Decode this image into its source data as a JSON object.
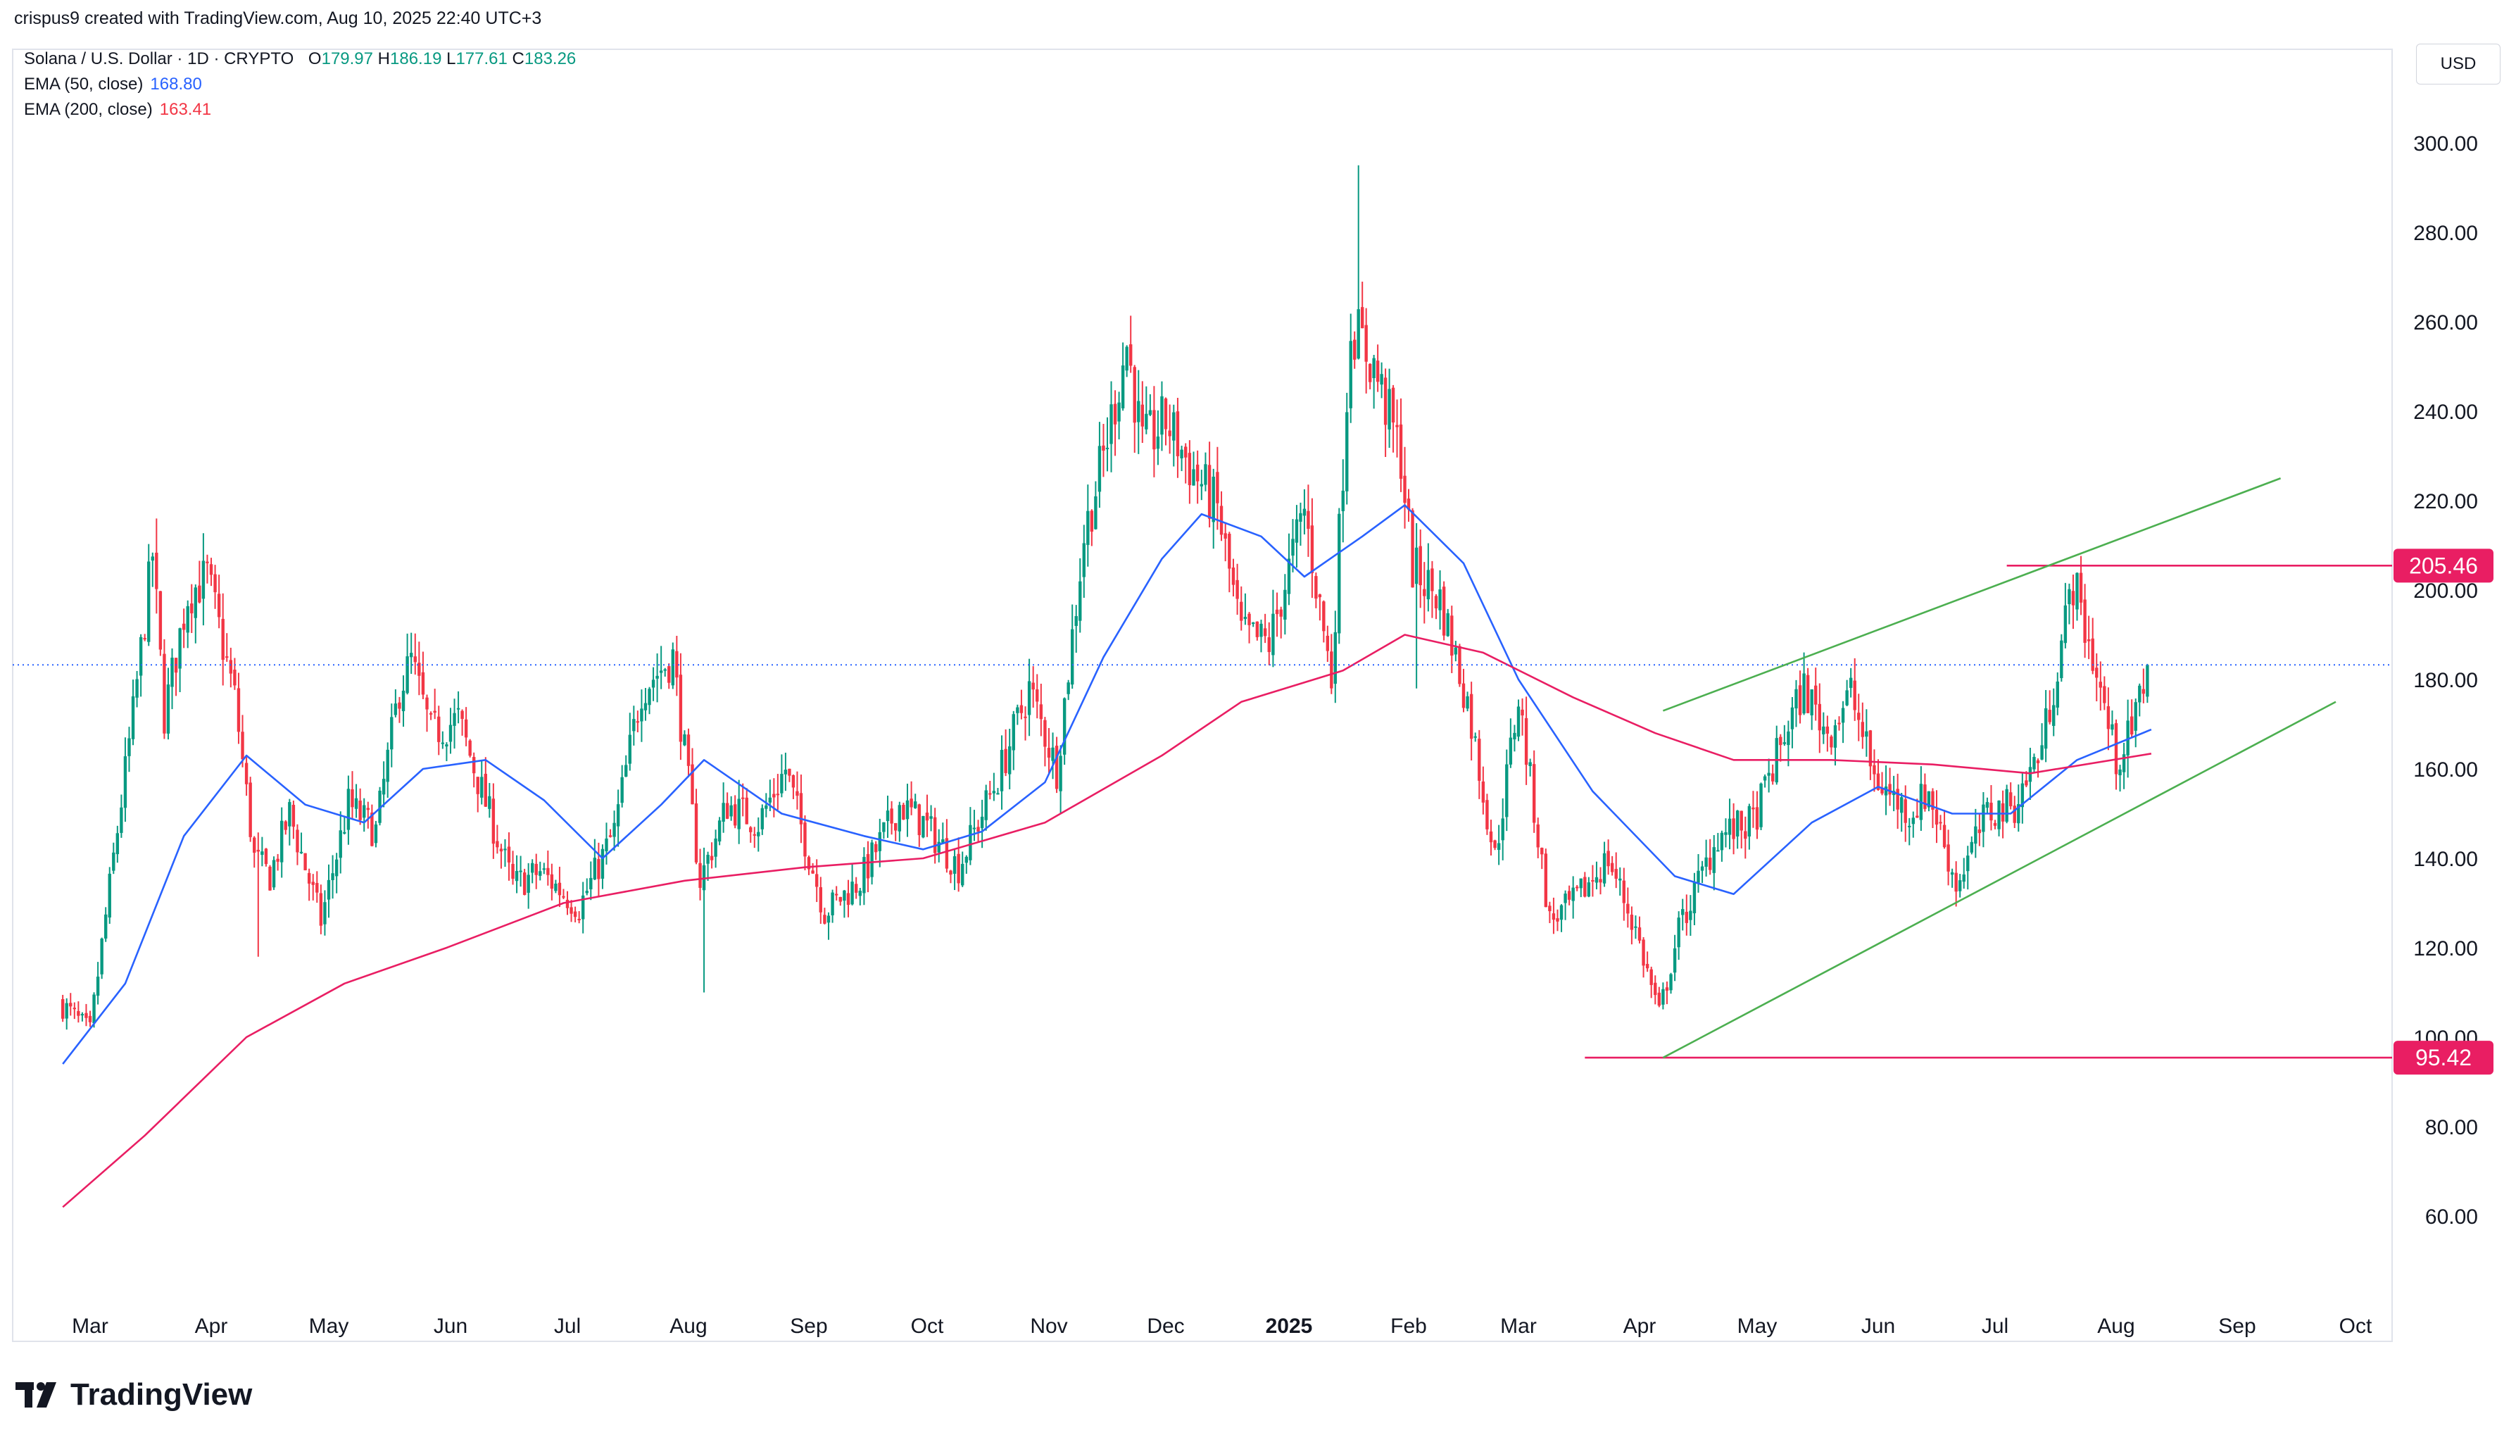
{
  "header": {
    "attribution": "crispus9 created with TradingView.com, Aug 10, 2025 22:40 UTC+3",
    "symbol": "Solana / U.S. Dollar · 1D · CRYPTO",
    "ohlc": {
      "o_label": "O",
      "o": "179.97",
      "h_label": "H",
      "h": "186.19",
      "l_label": "L",
      "l": "177.61",
      "c_label": "C",
      "c": "183.26"
    },
    "ema50": {
      "label": "EMA (50, close)",
      "value": "168.80"
    },
    "ema200": {
      "label": "EMA (200, close)",
      "value": "163.41"
    },
    "currency": "USD"
  },
  "colors": {
    "up": "#089981",
    "down": "#f23645",
    "ema50": "#2962ff",
    "ema200": "#e91e63",
    "channel": "#4caf50",
    "level": "#e91e63",
    "last_price": "#2962ff"
  },
  "chart_data": {
    "type": "line",
    "title": "",
    "xlabel": "",
    "ylabel": "",
    "x_ticks": [
      "Mar",
      "Apr",
      "May",
      "Jun",
      "Jul",
      "Aug",
      "Sep",
      "Oct",
      "Nov",
      "Dec",
      "2025",
      "Feb",
      "Mar",
      "Apr",
      "May",
      "Jun",
      "Jul",
      "Aug",
      "Sep",
      "Oct"
    ],
    "y_ticks": [
      "60.00",
      "80.00",
      "100.00",
      "120.00",
      "140.00",
      "160.00",
      "180.00",
      "200.00",
      "220.00",
      "240.00",
      "260.00",
      "280.00",
      "300.00"
    ],
    "ylim": [
      42,
      325
    ],
    "grid": false,
    "last_close": 183.26,
    "price_path": [
      [
        "2024-02-23",
        108
      ],
      [
        "2024-03-02",
        101
      ],
      [
        "2024-03-08",
        140
      ],
      [
        "2024-03-13",
        172
      ],
      [
        "2024-03-18",
        208
      ],
      [
        "2024-03-21",
        172
      ],
      [
        "2024-03-27",
        199
      ],
      [
        "2024-04-01",
        203
      ],
      [
        "2024-04-08",
        176
      ],
      [
        "2024-04-13",
        140
      ],
      [
        "2024-04-17",
        136
      ],
      [
        "2024-04-22",
        150
      ],
      [
        "2024-04-30",
        126
      ],
      [
        "2024-05-07",
        152
      ],
      [
        "2024-05-14",
        146
      ],
      [
        "2024-05-20",
        178
      ],
      [
        "2024-05-23",
        184
      ],
      [
        "2024-05-28",
        168
      ],
      [
        "2024-06-04",
        171
      ],
      [
        "2024-06-10",
        155
      ],
      [
        "2024-06-18",
        134
      ],
      [
        "2024-06-25",
        137
      ],
      [
        "2024-07-05",
        129
      ],
      [
        "2024-07-14",
        146
      ],
      [
        "2024-07-21",
        178
      ],
      [
        "2024-07-29",
        185
      ],
      [
        "2024-08-05",
        135
      ],
      [
        "2024-08-12",
        152
      ],
      [
        "2024-08-20",
        148
      ],
      [
        "2024-08-27",
        160
      ],
      [
        "2024-09-06",
        128
      ],
      [
        "2024-09-15",
        135
      ],
      [
        "2024-09-25",
        152
      ],
      [
        "2024-10-01",
        148
      ],
      [
        "2024-10-10",
        138
      ],
      [
        "2024-10-20",
        158
      ],
      [
        "2024-10-28",
        178
      ],
      [
        "2024-11-04",
        160
      ],
      [
        "2024-11-11",
        212
      ],
      [
        "2024-11-16",
        230
      ],
      [
        "2024-11-22",
        255
      ],
      [
        "2024-11-26",
        232
      ],
      [
        "2024-12-02",
        238
      ],
      [
        "2024-12-08",
        228
      ],
      [
        "2024-12-15",
        218
      ],
      [
        "2024-12-21",
        190
      ],
      [
        "2024-12-28",
        188
      ],
      [
        "2025-01-06",
        218
      ],
      [
        "2025-01-13",
        180
      ],
      [
        "2025-01-18",
        260
      ],
      [
        "2025-01-24",
        250
      ],
      [
        "2025-01-31",
        230
      ],
      [
        "2025-02-03",
        205
      ],
      [
        "2025-02-10",
        198
      ],
      [
        "2025-02-17",
        175
      ],
      [
        "2025-02-24",
        140
      ],
      [
        "2025-03-02",
        176
      ],
      [
        "2025-03-10",
        126
      ],
      [
        "2025-03-16",
        130
      ],
      [
        "2025-03-25",
        140
      ],
      [
        "2025-04-01",
        124
      ],
      [
        "2025-04-07",
        105
      ],
      [
        "2025-04-12",
        124
      ],
      [
        "2025-04-22",
        145
      ],
      [
        "2025-05-01",
        148
      ],
      [
        "2025-05-10",
        170
      ],
      [
        "2025-05-14",
        178
      ],
      [
        "2025-05-20",
        168
      ],
      [
        "2025-05-26",
        177
      ],
      [
        "2025-06-01",
        158
      ],
      [
        "2025-06-10",
        150
      ],
      [
        "2025-06-15",
        155
      ],
      [
        "2025-06-22",
        134
      ],
      [
        "2025-06-30",
        150
      ],
      [
        "2025-07-07",
        152
      ],
      [
        "2025-07-14",
        165
      ],
      [
        "2025-07-22",
        202
      ],
      [
        "2025-07-27",
        185
      ],
      [
        "2025-08-02",
        162
      ],
      [
        "2025-08-06",
        168
      ],
      [
        "2025-08-10",
        183.26
      ]
    ],
    "spikes": [
      [
        "2024-03-18",
        216
      ],
      [
        "2024-04-13",
        118
      ],
      [
        "2024-08-05",
        110
      ],
      [
        "2025-01-19",
        295
      ],
      [
        "2025-02-03",
        178
      ]
    ],
    "series": [
      {
        "name": "EMA (50, close)",
        "points": [
          [
            "2024-02-23",
            94
          ],
          [
            "2024-03-10",
            112
          ],
          [
            "2024-03-25",
            145
          ],
          [
            "2024-04-10",
            163
          ],
          [
            "2024-04-25",
            152
          ],
          [
            "2024-05-10",
            148
          ],
          [
            "2024-05-25",
            160
          ],
          [
            "2024-06-10",
            162
          ],
          [
            "2024-06-25",
            153
          ],
          [
            "2024-07-10",
            140
          ],
          [
            "2024-07-25",
            152
          ],
          [
            "2024-08-05",
            162
          ],
          [
            "2024-08-25",
            150
          ],
          [
            "2024-09-15",
            145
          ],
          [
            "2024-09-30",
            142
          ],
          [
            "2024-10-15",
            146
          ],
          [
            "2024-10-31",
            157
          ],
          [
            "2024-11-15",
            185
          ],
          [
            "2024-11-30",
            207
          ],
          [
            "2024-12-10",
            217
          ],
          [
            "2024-12-25",
            212
          ],
          [
            "2025-01-05",
            203
          ],
          [
            "2025-01-20",
            212
          ],
          [
            "2025-01-31",
            219
          ],
          [
            "2025-02-15",
            206
          ],
          [
            "2025-03-01",
            180
          ],
          [
            "2025-03-20",
            155
          ],
          [
            "2025-04-10",
            136
          ],
          [
            "2025-04-25",
            132
          ],
          [
            "2025-05-15",
            148
          ],
          [
            "2025-06-01",
            156
          ],
          [
            "2025-06-20",
            150
          ],
          [
            "2025-07-05",
            150
          ],
          [
            "2025-07-22",
            162
          ],
          [
            "2025-08-10",
            168.8
          ]
        ]
      },
      {
        "name": "EMA (200, close)",
        "points": [
          [
            "2024-02-23",
            62
          ],
          [
            "2024-03-15",
            78
          ],
          [
            "2024-04-10",
            100
          ],
          [
            "2024-05-05",
            112
          ],
          [
            "2024-05-31",
            120
          ],
          [
            "2024-06-30",
            130
          ],
          [
            "2024-07-31",
            135
          ],
          [
            "2024-08-31",
            138
          ],
          [
            "2024-09-30",
            140
          ],
          [
            "2024-10-31",
            148
          ],
          [
            "2024-11-30",
            163
          ],
          [
            "2024-12-20",
            175
          ],
          [
            "2025-01-15",
            182
          ],
          [
            "2025-01-31",
            190
          ],
          [
            "2025-02-20",
            186
          ],
          [
            "2025-03-15",
            176
          ],
          [
            "2025-04-05",
            168
          ],
          [
            "2025-04-25",
            162
          ],
          [
            "2025-05-20",
            162
          ],
          [
            "2025-06-15",
            161
          ],
          [
            "2025-07-10",
            159
          ],
          [
            "2025-08-10",
            163.41
          ]
        ]
      }
    ],
    "annotations": [
      {
        "type": "hline",
        "value": 205.46,
        "label": "205.46",
        "from": "2025-07-04"
      },
      {
        "type": "hline",
        "value": 95.42,
        "label": "95.42",
        "from": "2025-03-18"
      },
      {
        "type": "trendline",
        "from": [
          "2025-04-07",
          95.42
        ],
        "to": [
          "2025-09-26",
          175
        ]
      },
      {
        "type": "trendline",
        "from": [
          "2025-04-07",
          173
        ],
        "to": [
          "2025-09-12",
          225
        ]
      }
    ]
  },
  "footer": {
    "logo_text": "TradingView"
  }
}
